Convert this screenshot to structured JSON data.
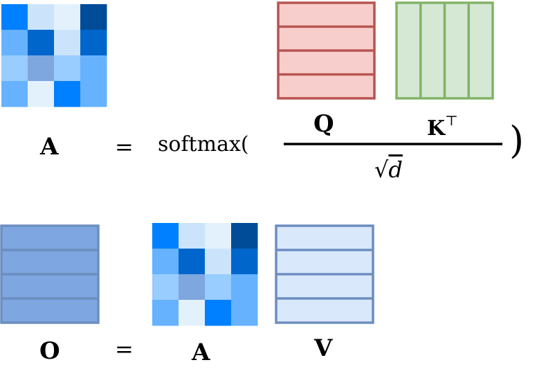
{
  "attention_eq": {
    "lhs": "A",
    "equals": "=",
    "function": "softmax(",
    "close_paren": ")",
    "numerator_q": "Q",
    "numerator_k": "K",
    "transpose": "⊤",
    "denominator_var": "d",
    "sqrt_symbol": "√"
  },
  "output_eq": {
    "lhs": "O",
    "equals": "=",
    "attention": "A",
    "values": "V"
  },
  "attention_matrix": [
    [
      "#0080ff",
      "#cce4fb",
      "#e3f1fd",
      "#004c99"
    ],
    [
      "#66b2ff",
      "#0066cc",
      "#cce4fb",
      "#0066cc"
    ],
    [
      "#99ccff",
      "#7ea6df",
      "#99ccff",
      "#66b2ff"
    ],
    [
      "#66b2ff",
      "#e3f1fd",
      "#0080ff",
      "#66b2ff"
    ]
  ],
  "colors": {
    "q_fill": "#f8cecc",
    "q_stroke": "#b85450",
    "k_fill": "#d5e8d4",
    "k_stroke": "#82b366",
    "o_fill": "#7ea6e0",
    "o_stroke": "#6c8ebf",
    "v_fill": "#dae8fc",
    "v_stroke": "#6c8ebf"
  }
}
